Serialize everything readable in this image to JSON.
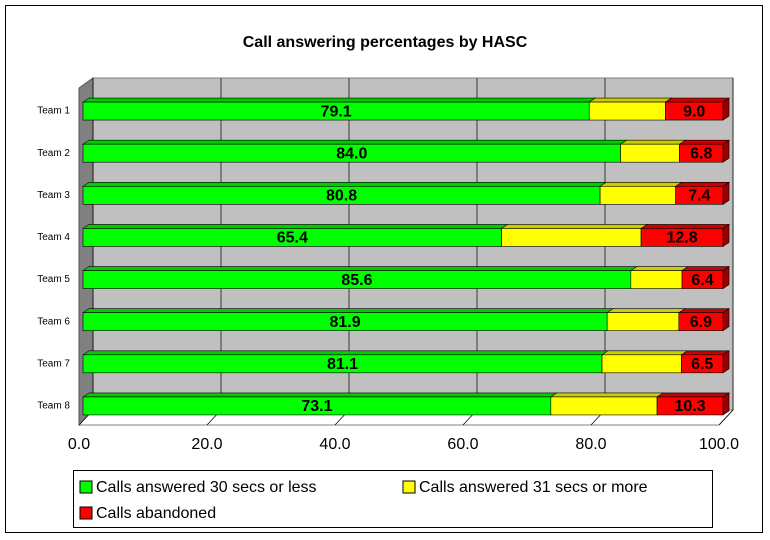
{
  "chart_data": {
    "type": "bar3d_stacked_horizontal",
    "title": "Call answering percentages by HASC",
    "categories": [
      "Team 1",
      "Team 2",
      "Team 3",
      "Team 4",
      "Team 5",
      "Team 6",
      "Team 7",
      "Team 8"
    ],
    "series": [
      {
        "name": "Calls answered 30 secs or less",
        "color": "#00ff00",
        "values": [
          79.1,
          84.0,
          80.8,
          65.4,
          85.6,
          81.9,
          81.1,
          73.1
        ],
        "value_labels": [
          "79.1",
          "84.0",
          "80.8",
          "65.4",
          "85.6",
          "81.9",
          "81.1",
          "73.1"
        ]
      },
      {
        "name": "Calls answered 31 secs or more",
        "color": "#ffff00",
        "values": [
          11.9,
          9.2,
          11.8,
          21.8,
          8.0,
          11.2,
          12.4,
          16.6
        ]
      },
      {
        "name": "Calls abandoned",
        "color": "#ff0000",
        "values": [
          9.0,
          6.8,
          7.4,
          12.8,
          6.4,
          6.9,
          6.5,
          10.3
        ],
        "value_labels": [
          "9.0",
          "6.8",
          "7.4",
          "12.8",
          "6.4",
          "6.9",
          "6.5",
          "10.3"
        ]
      }
    ],
    "xlim": [
      0,
      100
    ],
    "xticks": [
      {
        "value": 0,
        "label": "0.0"
      },
      {
        "value": 20,
        "label": "20.0"
      },
      {
        "value": 40,
        "label": "40.0"
      },
      {
        "value": 60,
        "label": "60.0"
      },
      {
        "value": 80,
        "label": "80.0"
      },
      {
        "value": 100,
        "label": "100.0"
      }
    ],
    "grid": true
  }
}
